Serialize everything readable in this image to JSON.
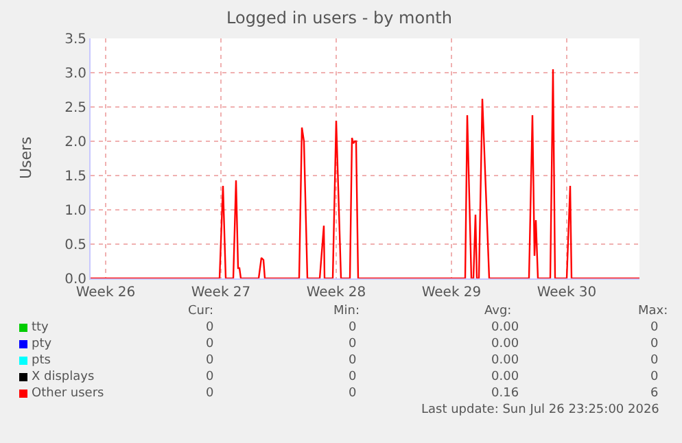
{
  "chart_data": {
    "type": "line",
    "title": "Logged in users - by month",
    "ylabel": "Users",
    "xlim": [
      "2026-06-24T14:00",
      "2026-07-27T22:00"
    ],
    "ylim": [
      0,
      3.5
    ],
    "xticks": [
      {
        "value": "2026-06-25T12:00",
        "label": "Week 26"
      },
      {
        "value": "2026-07-02T12:00",
        "label": "Week 27"
      },
      {
        "value": "2026-07-09T12:00",
        "label": "Week 28"
      },
      {
        "value": "2026-07-16T12:00",
        "label": "Week 29"
      },
      {
        "value": "2026-07-23T12:00",
        "label": "Week 30"
      }
    ],
    "yticks": [
      {
        "value": 0,
        "label": "0.0"
      },
      {
        "value": 0.5,
        "label": "0.5"
      },
      {
        "value": 1,
        "label": "1.0"
      },
      {
        "value": 1.5,
        "label": "1.5"
      },
      {
        "value": 2,
        "label": "2.0"
      },
      {
        "value": 2.5,
        "label": "2.5"
      },
      {
        "value": 3,
        "label": "3.0"
      },
      {
        "value": 3.5,
        "label": "3.5"
      }
    ],
    "grid": true,
    "legend": "bottom",
    "marker": "none",
    "line_style": "solid",
    "series": [
      {
        "name": "tty",
        "color": "#00cc00"
      },
      {
        "name": "pty",
        "color": "#0000ff"
      },
      {
        "name": "pts",
        "color": "#00ffff"
      },
      {
        "name": "X displays",
        "color": "#000000"
      },
      {
        "name": "Other users",
        "color": "#ff0000",
        "x": [
          "2026-06-24T14:00",
          "2026-07-02T10:00",
          "2026-07-02T15:00",
          "2026-07-02T19:00",
          "2026-07-03T06:00",
          "2026-07-03T10:00",
          "2026-07-03T13:00",
          "2026-07-03T15:00",
          "2026-07-03T17:00",
          "2026-07-04T19:00",
          "2026-07-04T23:00",
          "2026-07-05T02:00",
          "2026-07-05T04:00",
          "2026-07-07T06:00",
          "2026-07-07T10:00",
          "2026-07-07T13:00",
          "2026-07-07T18:00",
          "2026-07-08T12:00",
          "2026-07-08T18:00",
          "2026-07-08T19:00",
          "2026-07-09T07:00",
          "2026-07-09T12:00",
          "2026-07-09T19:00",
          "2026-07-10T08:00",
          "2026-07-10T11:00",
          "2026-07-10T13:00",
          "2026-07-10T15:00",
          "2026-07-10T17:00",
          "2026-07-10T20:00",
          "2026-07-17T08:00",
          "2026-07-17T11:00",
          "2026-07-17T17:00",
          "2026-07-17T20:00",
          "2026-07-17T23:00",
          "2026-07-18T01:00",
          "2026-07-18T04:00",
          "2026-07-18T09:00",
          "2026-07-18T19:00",
          "2026-07-21T05:00",
          "2026-07-21T10:00",
          "2026-07-21T13:00",
          "2026-07-21T15:00",
          "2026-07-21T18:00",
          "2026-07-22T12:00",
          "2026-07-22T16:00",
          "2026-07-22T19:00",
          "2026-07-23T12:00",
          "2026-07-23T17:00",
          "2026-07-23T19:00",
          "2026-07-27T22:00"
        ],
        "values": [
          0,
          0,
          1.35,
          0,
          0,
          1.43,
          0.15,
          0.15,
          0,
          0,
          0.3,
          0.27,
          0,
          0,
          2.2,
          2.0,
          0,
          0,
          0.77,
          0,
          0,
          2.3,
          0,
          0,
          2.05,
          1.97,
          2.0,
          2.0,
          0,
          0,
          2.38,
          0,
          0,
          0.93,
          0,
          0,
          2.62,
          0,
          0,
          2.38,
          0.33,
          0.85,
          0,
          0,
          3.05,
          0,
          0,
          1.35,
          0,
          0
        ]
      }
    ],
    "annotations": [
      "Cur:",
      "Min:",
      "Avg:",
      "Max:",
      "0",
      "0",
      "0.00",
      "0",
      "0",
      "0",
      "0.00",
      "0",
      "0",
      "0",
      "0.00",
      "0",
      "0",
      "0",
      "0.00",
      "0",
      "0",
      "0",
      "0.16",
      "6",
      "Last update: Sun Jul 26 23:25:00 2026"
    ]
  }
}
